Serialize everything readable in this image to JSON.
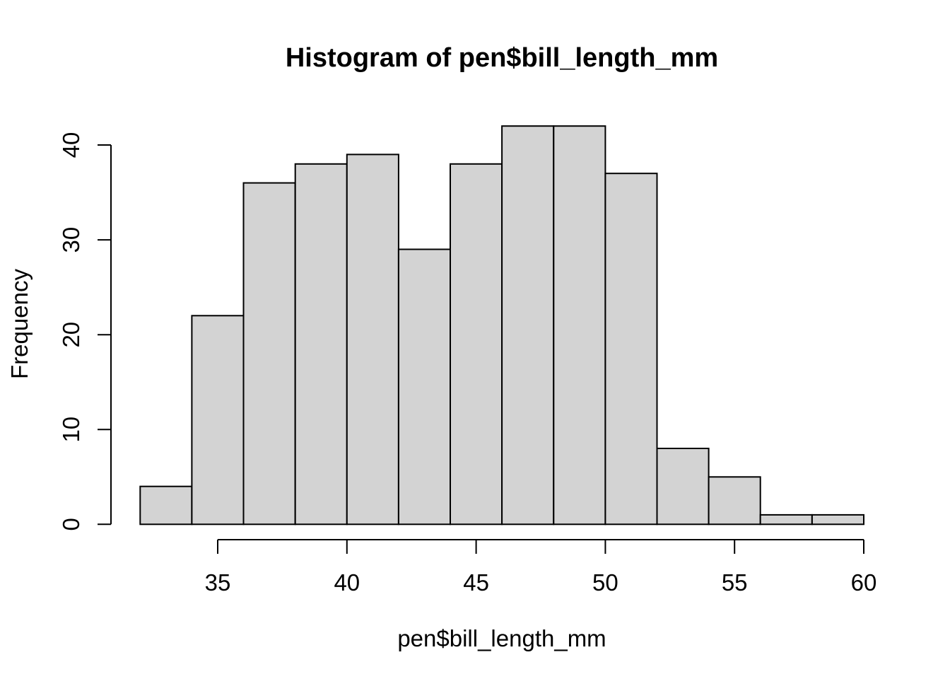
{
  "chart_data": {
    "type": "bar",
    "subtype": "histogram",
    "title": "Histogram of pen$bill_length_mm",
    "xlabel": "pen$bill_length_mm",
    "ylabel": "Frequency",
    "breaks": [
      32,
      34,
      36,
      38,
      40,
      42,
      44,
      46,
      48,
      50,
      52,
      54,
      56,
      58,
      60
    ],
    "counts": [
      4,
      22,
      36,
      38,
      39,
      29,
      38,
      42,
      42,
      37,
      8,
      5,
      1,
      1
    ],
    "categories": [
      "32-34",
      "34-36",
      "36-38",
      "38-40",
      "40-42",
      "42-44",
      "44-46",
      "46-48",
      "48-50",
      "50-52",
      "52-54",
      "54-56",
      "56-58",
      "58-60"
    ],
    "values": [
      4,
      22,
      36,
      38,
      39,
      29,
      38,
      42,
      42,
      37,
      8,
      5,
      1,
      1
    ],
    "x_ticks": [
      35,
      40,
      45,
      50,
      55,
      60
    ],
    "y_ticks": [
      0,
      10,
      20,
      30,
      40
    ],
    "xlim": [
      32,
      60
    ],
    "ylim": [
      0,
      42
    ],
    "grid": false,
    "legend": false,
    "bar_fill": "#d3d3d3",
    "bar_stroke": "#000000",
    "axis_color": "#000000",
    "text_color": "#000000",
    "background": "#ffffff"
  }
}
